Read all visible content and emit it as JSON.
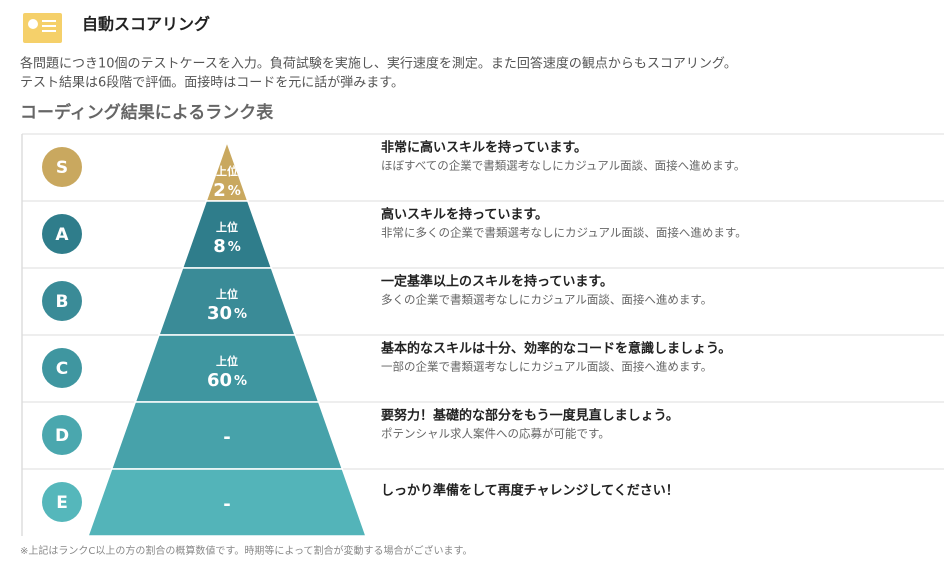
{
  "header": {
    "title": "自動スコアリング",
    "description": [
      "各問題につき10個のテストケースを入力。負荷試験を実施し、実行速度を測定。また回答速度の観点からもスコアリング。",
      "テスト結果は6段階で評価。面接時はコードを元に話が弾みます。"
    ]
  },
  "section_title": "コーディング結果によるランク表",
  "ranks": [
    {
      "letter": "S",
      "prefix": "上位",
      "percent": "2",
      "unit": "%",
      "heading": "非常に高いスキルを持っています。",
      "description": "ほぼすべての企業で書類選考なしにカジュアル面談、面接へ進めます。"
    },
    {
      "letter": "A",
      "prefix": "上位",
      "percent": "8",
      "unit": "%",
      "heading": "高いスキルを持っています。",
      "description": "非常に多くの企業で書類選考なしにカジュアル面談、面接へ進めます。"
    },
    {
      "letter": "B",
      "prefix": "上位",
      "percent": "30",
      "unit": "%",
      "heading": "一定基準以上のスキルを持っています。",
      "description": "多くの企業で書類選考なしにカジュアル面談、面接へ進めます。"
    },
    {
      "letter": "C",
      "prefix": "上位",
      "percent": "60",
      "unit": "%",
      "heading": "基本的なスキルは十分、効率的なコードを意識しましょう。",
      "description": "一部の企業で書類選考なしにカジュアル面談、面接へ進めます。"
    },
    {
      "letter": "D",
      "percent": "-",
      "heading": "要努力！基礎的な部分をもう一度見直しましょう。",
      "description": "ポテンシャル求人案件への応募が可能です。"
    },
    {
      "letter": "E",
      "percent": "-",
      "heading": "しっかり準備をして再度チャレンジしてください！"
    }
  ],
  "footnote": "※上記はランクC以上の方の割合の概算数値です。時期等によって割合が変動する場合がございます。"
}
